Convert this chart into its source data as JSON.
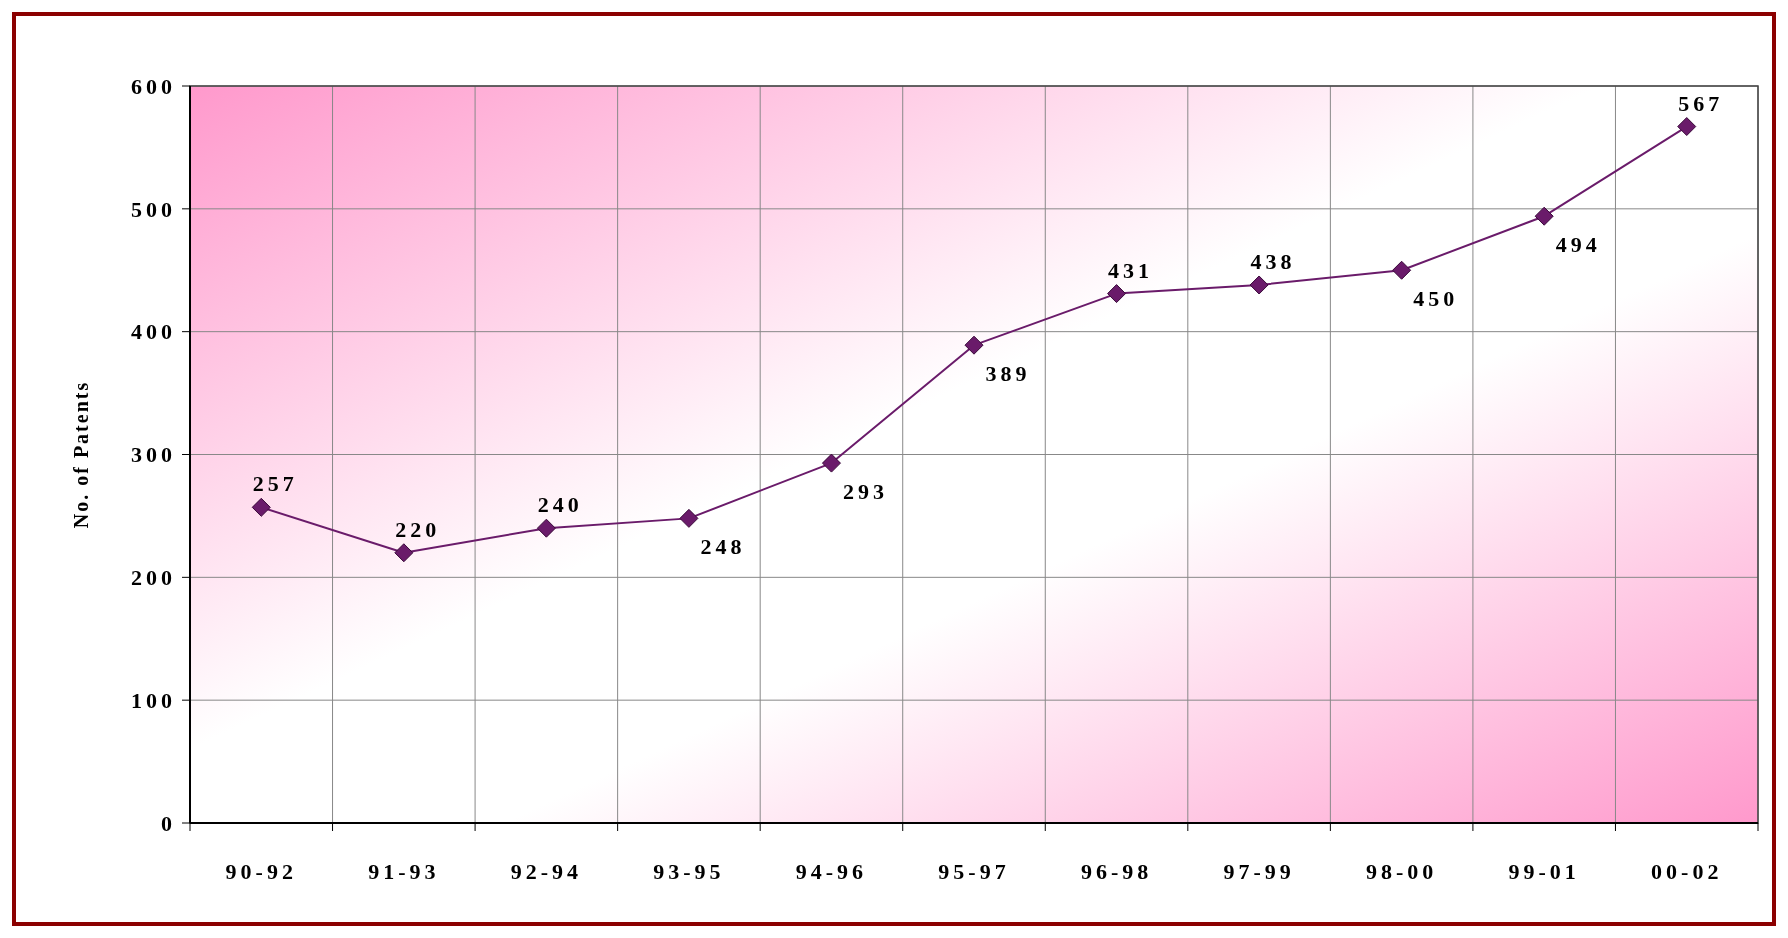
{
  "chart_data": {
    "type": "line",
    "ylabel": "No. of Patents",
    "categories": [
      "90-92",
      "91-93",
      "92-94",
      "93-95",
      "94-96",
      "95-97",
      "96-98",
      "97-99",
      "98-00",
      "99-01",
      "00-02"
    ],
    "series": [
      {
        "color": "#6a1b6a",
        "values": [
          257,
          220,
          240,
          248,
          293,
          389,
          431,
          438,
          450,
          494,
          567
        ]
      }
    ],
    "ylim": [
      0,
      600
    ],
    "yticks": [
      0,
      100,
      200,
      300,
      400,
      500,
      600
    ],
    "grid": true,
    "marker": "diamond",
    "line_style": "solid",
    "data_labels": true
  }
}
